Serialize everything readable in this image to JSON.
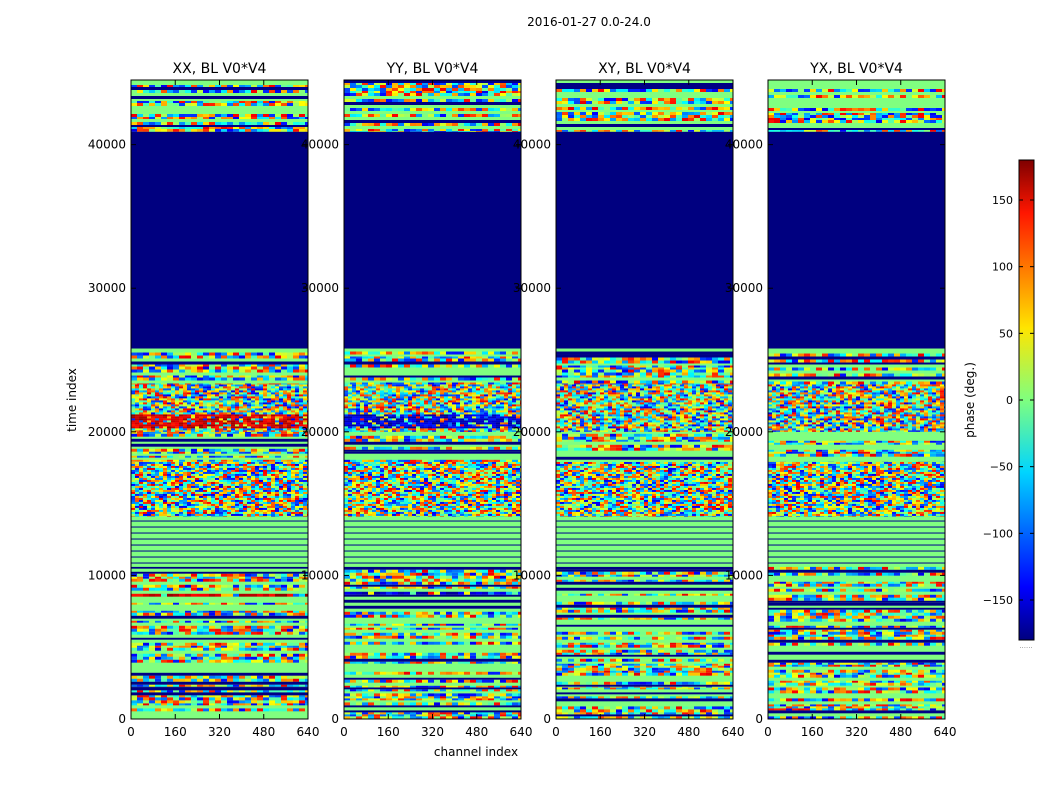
{
  "chart_data": {
    "type": "heatmap",
    "suptitle": "2016-01-27 0.0-24.0",
    "xlabel": "channel index",
    "ylabel": "time index",
    "xlim": [
      0,
      640
    ],
    "ylim": [
      0,
      44500
    ],
    "xticks": [
      0,
      160,
      320,
      480,
      640
    ],
    "yticks": [
      0,
      10000,
      20000,
      30000,
      40000
    ],
    "colorbar": {
      "label": "phase (deg.)",
      "range": [
        -180,
        180
      ],
      "ticks": [
        -150,
        -100,
        -50,
        0,
        50,
        100,
        150
      ],
      "colormap": "jet",
      "extra_text": "......"
    },
    "panels": [
      {
        "title": "XX, BL V0*V4",
        "seed": 11
      },
      {
        "title": "YY, BL V0*V4",
        "seed": 23
      },
      {
        "title": "XY, BL V0*V4",
        "seed": 37
      },
      {
        "title": "YX, BL V0*V4",
        "seed": 51
      }
    ],
    "segments": [
      {
        "t0": 0,
        "t1": 2200,
        "kind": "mix"
      },
      {
        "t0": 2200,
        "t1": 10600,
        "kind": "mix"
      },
      {
        "t0": 10600,
        "t1": 14100,
        "kind": "flat"
      },
      {
        "t0": 14100,
        "t1": 17900,
        "kind": "noise"
      },
      {
        "t0": 17900,
        "t1": 20000,
        "kind": "mix"
      },
      {
        "t0": 20000,
        "t1": 23300,
        "kind": "noise"
      },
      {
        "t0": 23300,
        "t1": 25800,
        "kind": "mix"
      },
      {
        "t0": 25800,
        "t1": 40900,
        "kind": "blank"
      },
      {
        "t0": 40900,
        "t1": 44500,
        "kind": "mix"
      }
    ],
    "highlights": [
      {
        "panel": 0,
        "t0": 20300,
        "t1": 21300,
        "bias": 150
      },
      {
        "panel": 1,
        "t0": 20300,
        "t1": 21300,
        "bias": -150
      },
      {
        "panel": 0,
        "t0": 8400,
        "t1": 8900,
        "bias": 150
      },
      {
        "panel": 1,
        "t0": 8400,
        "t1": 8900,
        "bias": -150
      }
    ]
  }
}
